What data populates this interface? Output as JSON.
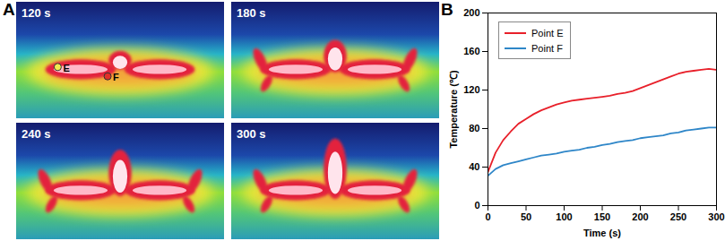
{
  "panel_a": {
    "panel": "A",
    "frames": [
      "120 s",
      "180 s",
      "240 s",
      "300 s"
    ],
    "points": [
      "E",
      "F"
    ]
  },
  "chart_data": {
    "type": "line",
    "panel": "B",
    "x_label": "Time (s)",
    "y_label": "Temperature (℃)",
    "x": [
      0,
      10,
      20,
      30,
      40,
      50,
      60,
      70,
      80,
      90,
      100,
      110,
      120,
      130,
      140,
      150,
      160,
      170,
      180,
      190,
      200,
      210,
      220,
      230,
      240,
      250,
      260,
      270,
      280,
      290,
      300
    ],
    "series": [
      {
        "name": "Point E",
        "color": "#e8202a",
        "values": [
          35,
          55,
          68,
          77,
          85,
          90,
          95,
          99,
          102,
          105,
          107,
          109,
          110,
          111,
          112,
          113,
          114,
          116,
          117,
          119,
          122,
          125,
          128,
          131,
          134,
          137,
          139,
          140,
          141,
          142,
          141
        ]
      },
      {
        "name": "Point F",
        "color": "#2e86c8",
        "values": [
          31,
          38,
          42,
          44,
          46,
          48,
          50,
          52,
          53,
          54,
          56,
          57,
          58,
          60,
          61,
          63,
          64,
          66,
          67,
          68,
          70,
          71,
          72,
          73,
          75,
          76,
          78,
          79,
          80,
          81,
          81
        ]
      }
    ],
    "xlim": [
      0,
      300
    ],
    "xticks": [
      0,
      50,
      100,
      150,
      200,
      250,
      300
    ],
    "ylim": [
      0,
      200
    ],
    "yticks": [
      0,
      40,
      80,
      120,
      160,
      200
    ],
    "grid": false,
    "legend": "top-left"
  }
}
